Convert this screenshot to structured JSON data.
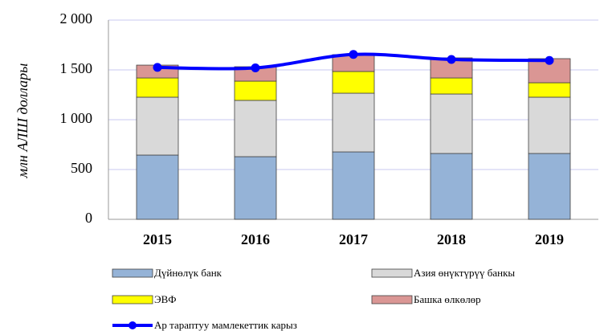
{
  "chart_data": {
    "type": "bar",
    "y_label": "млн АЛШ доллары",
    "categories": [
      "2015",
      "2016",
      "2017",
      "2018",
      "2019"
    ],
    "series": [
      {
        "name": "Дүйнөлүк  банк",
        "type": "bar",
        "color": "#95b3d7",
        "values": [
          645,
          629,
          677,
          661,
          661
        ]
      },
      {
        "name": "Азия  өнүктүрүү банкы",
        "type": "bar",
        "color": "#d9d9d9",
        "values": [
          581,
          565,
          589,
          597,
          565
        ]
      },
      {
        "name": "ЭВФ",
        "type": "bar",
        "color": "#ffff00",
        "values": [
          193,
          193,
          218,
          161,
          145
        ]
      },
      {
        "name": "Башка өлкөлөр",
        "type": "bar",
        "color": "#da9694",
        "values": [
          129,
          145,
          169,
          202,
          242
        ]
      },
      {
        "name": "Ар тараптуу мамлекеттик карыз",
        "type": "line",
        "color": "#0000ff",
        "values": [
          1525,
          1520,
          1655,
          1605,
          1595
        ]
      }
    ],
    "ylim": [
      0,
      2000
    ],
    "yticks": [
      0,
      500,
      {
        "value": 1000,
        "label": "1 000"
      },
      {
        "value": 1500,
        "label": "1 500"
      },
      {
        "value": 2000,
        "label": "2 000"
      }
    ],
    "grid": true
  }
}
